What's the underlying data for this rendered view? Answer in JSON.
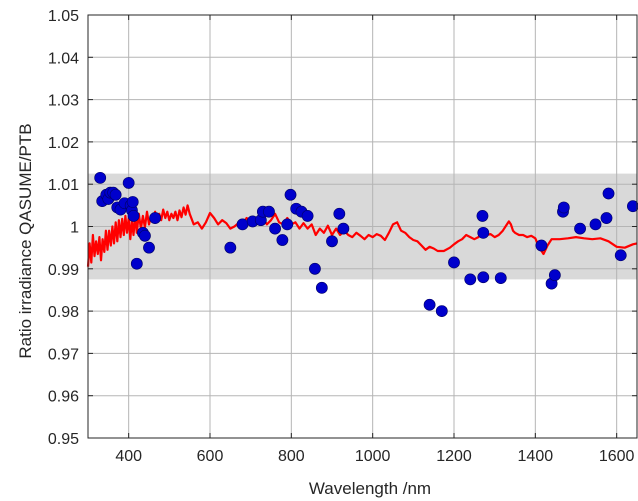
{
  "chart_data": {
    "type": "scatter",
    "title": "",
    "xlabel": "Wavelength /nm",
    "ylabel": "Ratio irradiance QASUME/PTB",
    "xlim": [
      300,
      1650
    ],
    "ylim": [
      0.95,
      1.05
    ],
    "xticks": [
      400,
      600,
      800,
      1000,
      1200,
      1400,
      1600
    ],
    "yticks": [
      0.95,
      0.96,
      0.97,
      0.98,
      0.99,
      1.0,
      1.01,
      1.02,
      1.03,
      1.04,
      1.05
    ],
    "ytick_labels": [
      "0.95",
      "0.96",
      "0.97",
      "0.98",
      "0.99",
      "1",
      "1.01",
      "1.02",
      "1.03",
      "1.04",
      "1.05"
    ],
    "grid": true,
    "uncertainty_band": {
      "ymin": 0.9875,
      "ymax": 1.0125,
      "color": "#d9d9d9"
    },
    "series": [
      {
        "type": "scatter",
        "color": "#0000cc",
        "points": [
          [
            330,
            1.0115
          ],
          [
            335,
            1.006
          ],
          [
            345,
            1.0075
          ],
          [
            350,
            1.0065
          ],
          [
            355,
            1.008
          ],
          [
            362,
            1.008
          ],
          [
            368,
            1.0075
          ],
          [
            372,
            1.0045
          ],
          [
            380,
            1.004
          ],
          [
            390,
            1.0055
          ],
          [
            400,
            1.0103
          ],
          [
            405,
            1.005
          ],
          [
            408,
            1.0038
          ],
          [
            410,
            1.0058
          ],
          [
            412,
            1.0025
          ],
          [
            420,
            0.9912
          ],
          [
            435,
            0.9985
          ],
          [
            440,
            0.9978
          ],
          [
            450,
            0.995
          ],
          [
            465,
            1.002
          ],
          [
            650,
            0.995
          ],
          [
            680,
            1.0005
          ],
          [
            705,
            1.0012
          ],
          [
            725,
            1.0015
          ],
          [
            730,
            1.0035
          ],
          [
            745,
            1.0035
          ],
          [
            760,
            0.9995
          ],
          [
            778,
            0.9968
          ],
          [
            790,
            1.0005
          ],
          [
            798,
            1.0075
          ],
          [
            812,
            1.0042
          ],
          [
            825,
            1.0035
          ],
          [
            840,
            1.0025
          ],
          [
            858,
            0.99
          ],
          [
            875,
            0.9855
          ],
          [
            900,
            0.9965
          ],
          [
            918,
            1.003
          ],
          [
            928,
            0.9995
          ],
          [
            1140,
            0.9815
          ],
          [
            1170,
            0.98
          ],
          [
            1200,
            0.9915
          ],
          [
            1240,
            0.9875
          ],
          [
            1270,
            1.0025
          ],
          [
            1272,
            0.9985
          ],
          [
            1272,
            0.988
          ],
          [
            1315,
            0.9878
          ],
          [
            1415,
            0.9955
          ],
          [
            1440,
            0.9865
          ],
          [
            1448,
            0.9885
          ],
          [
            1468,
            1.0035
          ],
          [
            1470,
            1.0045
          ],
          [
            1510,
            0.9995
          ],
          [
            1548,
            1.0005
          ],
          [
            1575,
            1.002
          ],
          [
            1580,
            1.0078
          ],
          [
            1610,
            0.9932
          ],
          [
            1640,
            1.0048
          ]
        ]
      },
      {
        "type": "line",
        "color": "#ff0000",
        "points": [
          [
            300,
            0.9905
          ],
          [
            304,
            0.996
          ],
          [
            308,
            0.9915
          ],
          [
            312,
            0.998
          ],
          [
            316,
            0.993
          ],
          [
            320,
            0.9965
          ],
          [
            324,
            0.9935
          ],
          [
            328,
            0.9975
          ],
          [
            332,
            0.992
          ],
          [
            336,
            0.997
          ],
          [
            340,
            0.994
          ],
          [
            344,
            0.999
          ],
          [
            348,
            0.9945
          ],
          [
            352,
            0.999
          ],
          [
            356,
            0.9955
          ],
          [
            360,
            1.0
          ],
          [
            364,
            0.996
          ],
          [
            368,
            1.001
          ],
          [
            372,
            0.9965
          ],
          [
            376,
            1.0015
          ],
          [
            380,
            0.9975
          ],
          [
            384,
            1.0018
          ],
          [
            388,
            0.998
          ],
          [
            392,
            1.0025
          ],
          [
            396,
            0.9985
          ],
          [
            400,
            1.002
          ],
          [
            404,
            0.997
          ],
          [
            408,
            1.0015
          ],
          [
            412,
            0.998
          ],
          [
            416,
            1.0025
          ],
          [
            420,
            0.9985
          ],
          [
            425,
            1.003
          ],
          [
            430,
            0.9995
          ],
          [
            435,
            1.0025
          ],
          [
            440,
            0.9998
          ],
          [
            445,
            1.0035
          ],
          [
            450,
            1.0005
          ],
          [
            455,
            1.0025
          ],
          [
            460,
            1.001
          ],
          [
            465,
            1.0035
          ],
          [
            470,
            1.0012
          ],
          [
            475,
            1.003
          ],
          [
            480,
            1.0015
          ],
          [
            485,
            1.004
          ],
          [
            490,
            1.002
          ],
          [
            495,
            1.0035
          ],
          [
            500,
            1.0015
          ],
          [
            505,
            1.003
          ],
          [
            510,
            1.002
          ],
          [
            515,
            1.0035
          ],
          [
            520,
            1.0015
          ],
          [
            525,
            1.0038
          ],
          [
            530,
            1.0022
          ],
          [
            535,
            1.0045
          ],
          [
            540,
            1.0028
          ],
          [
            545,
            1.005
          ],
          [
            550,
            1.003
          ],
          [
            560,
            1.0005
          ],
          [
            570,
            1.001
          ],
          [
            580,
            0.9995
          ],
          [
            590,
            1.001
          ],
          [
            600,
            1.0032
          ],
          [
            610,
            1.002
          ],
          [
            620,
            1.0005
          ],
          [
            630,
            1.0015
          ],
          [
            640,
            1.0008
          ],
          [
            650,
            0.9995
          ],
          [
            660,
            1.0
          ],
          [
            670,
            1.0008
          ],
          [
            680,
            1.0005
          ],
          [
            690,
            1.002
          ],
          [
            700,
            1.0012
          ],
          [
            710,
            1.0015
          ],
          [
            720,
            1.0025
          ],
          [
            730,
            1.002
          ],
          [
            740,
            1.0005
          ],
          [
            750,
            1.0015
          ],
          [
            760,
            1.003
          ],
          [
            770,
            1.001
          ],
          [
            780,
            1.0005
          ],
          [
            790,
            1.002
          ],
          [
            800,
            1.0005
          ],
          [
            810,
            1.001
          ],
          [
            820,
            0.9995
          ],
          [
            830,
            1.0008
          ],
          [
            840,
            0.9995
          ],
          [
            850,
            1.0005
          ],
          [
            860,
            0.998
          ],
          [
            870,
            0.9995
          ],
          [
            880,
            0.9985
          ],
          [
            890,
            1.0002
          ],
          [
            900,
            0.998
          ],
          [
            910,
            0.9995
          ],
          [
            920,
            0.998
          ],
          [
            930,
            0.999
          ],
          [
            940,
            0.998
          ],
          [
            950,
            0.9975
          ],
          [
            960,
            0.9985
          ],
          [
            970,
            0.9978
          ],
          [
            980,
            0.997
          ],
          [
            990,
            0.998
          ],
          [
            1000,
            0.9975
          ],
          [
            1010,
            0.9982
          ],
          [
            1020,
            0.9978
          ],
          [
            1030,
            0.9968
          ],
          [
            1040,
            0.9985
          ],
          [
            1050,
            1.0005
          ],
          [
            1060,
            1.001
          ],
          [
            1070,
            0.999
          ],
          [
            1080,
            0.9985
          ],
          [
            1090,
            0.9975
          ],
          [
            1100,
            0.9968
          ],
          [
            1110,
            0.9965
          ],
          [
            1120,
            0.9955
          ],
          [
            1130,
            0.9945
          ],
          [
            1140,
            0.9952
          ],
          [
            1150,
            0.9948
          ],
          [
            1160,
            0.9942
          ],
          [
            1175,
            0.9942
          ],
          [
            1190,
            0.995
          ],
          [
            1200,
            0.9958
          ],
          [
            1210,
            0.9965
          ],
          [
            1220,
            0.997
          ],
          [
            1230,
            0.998
          ],
          [
            1240,
            0.9975
          ],
          [
            1250,
            0.997
          ],
          [
            1260,
            0.9975
          ],
          [
            1270,
            0.9988
          ],
          [
            1280,
            0.998
          ],
          [
            1290,
            0.9982
          ],
          [
            1300,
            0.9975
          ],
          [
            1310,
            0.998
          ],
          [
            1320,
            0.999
          ],
          [
            1330,
            1.0005
          ],
          [
            1335,
            1.0012
          ],
          [
            1340,
            1.0005
          ],
          [
            1345,
            0.999
          ],
          [
            1350,
            0.9985
          ],
          [
            1360,
            0.998
          ],
          [
            1370,
            0.998
          ],
          [
            1380,
            0.9975
          ],
          [
            1390,
            0.9978
          ],
          [
            1400,
            0.9972
          ],
          [
            1410,
            0.995
          ],
          [
            1420,
            0.9935
          ],
          [
            1430,
            0.9955
          ],
          [
            1440,
            0.997
          ],
          [
            1460,
            0.997
          ],
          [
            1480,
            0.9972
          ],
          [
            1500,
            0.9975
          ],
          [
            1520,
            0.9972
          ],
          [
            1540,
            0.997
          ],
          [
            1560,
            0.9972
          ],
          [
            1580,
            0.9965
          ],
          [
            1600,
            0.9952
          ],
          [
            1620,
            0.995
          ],
          [
            1640,
            0.9958
          ],
          [
            1650,
            0.996
          ]
        ]
      }
    ]
  }
}
